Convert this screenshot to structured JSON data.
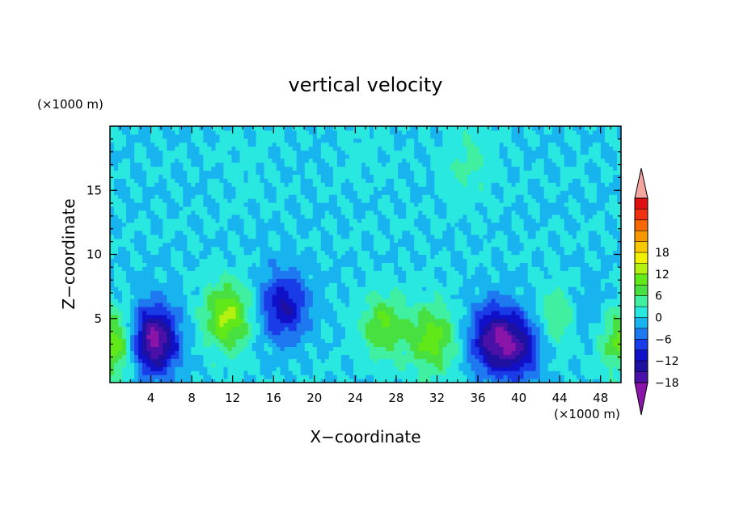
{
  "chart_data": {
    "type": "heatmap",
    "title": "vertical velocity",
    "xlabel": "X−coordinate",
    "ylabel": "Z−coordinate",
    "x_unit": "(×1000 m)",
    "y_unit": "(×1000 m)",
    "x_ticks": [
      "4",
      "8",
      "12",
      "16",
      "20",
      "24",
      "28",
      "32",
      "36",
      "40",
      "44",
      "48"
    ],
    "y_ticks": [
      "5",
      "10",
      "15"
    ],
    "xlim": [
      0,
      50
    ],
    "ylim": [
      0,
      20
    ],
    "colorbar_ticks": [
      "18",
      "12",
      "6",
      "0",
      "−6",
      "−12",
      "−18"
    ],
    "colorbar_range": [
      -21,
      21
    ],
    "colorbar_step": 3,
    "colors": {
      "above_max": "#f4a6a0",
      "below_min": "#8b15a8"
    },
    "features": [
      {
        "x": 0.3,
        "z": 3.0,
        "value": 12
      },
      {
        "x": 4.3,
        "z": 3.3,
        "value": -20
      },
      {
        "x": 11.5,
        "z": 5.2,
        "value": 13
      },
      {
        "x": 17.0,
        "z": 6.0,
        "value": -12
      },
      {
        "x": 26.8,
        "z": 4.5,
        "value": 9
      },
      {
        "x": 31.5,
        "z": 3.4,
        "value": 11
      },
      {
        "x": 37.5,
        "z": 3.5,
        "value": -15
      },
      {
        "x": 40.0,
        "z": 2.8,
        "value": -12
      },
      {
        "x": 43.8,
        "z": 5.0,
        "value": 6
      },
      {
        "x": 47.0,
        "z": 5.0,
        "value": -4
      },
      {
        "x": 49.8,
        "z": 3.5,
        "value": 10
      },
      {
        "x": 35.0,
        "z": 17.0,
        "value": 4
      },
      {
        "x": 13.0,
        "z": 17.5,
        "value": 1
      },
      {
        "x": 25.0,
        "z": 18.0,
        "value": 1
      }
    ]
  }
}
